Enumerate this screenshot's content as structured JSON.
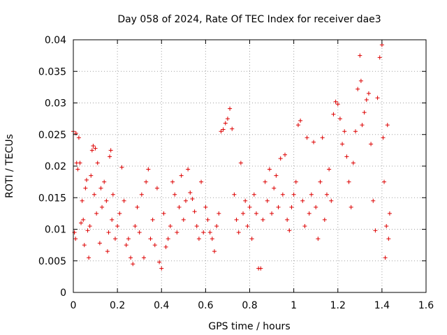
{
  "chart_data": {
    "type": "scatter",
    "title": "Day 058 of 2024, Rate Of TEC Index for receiver dae3",
    "xlabel": "GPS time / hours",
    "ylabel": "ROTI / TECUs",
    "xlim": [
      0,
      1.6
    ],
    "ylim": [
      0,
      0.04
    ],
    "x_ticks": [
      "0",
      "0.2",
      "0.4",
      "0.6",
      "0.8",
      "1",
      "1.2",
      "1.4",
      "1.6"
    ],
    "y_ticks": [
      "0",
      "0.005",
      "0.01",
      "0.015",
      "0.02",
      "0.025",
      "0.03",
      "0.035",
      "0.04"
    ],
    "grid": true,
    "marker": "+",
    "series_color": "#dd0000",
    "series": [
      {
        "name": "ROTI",
        "points": [
          [
            0.0,
            0.0255
          ],
          [
            0.005,
            0.0095
          ],
          [
            0.01,
            0.0085
          ],
          [
            0.012,
            0.0252
          ],
          [
            0.015,
            0.0205
          ],
          [
            0.02,
            0.0195
          ],
          [
            0.025,
            0.0245
          ],
          [
            0.03,
            0.0205
          ],
          [
            0.035,
            0.011
          ],
          [
            0.04,
            0.0145
          ],
          [
            0.045,
            0.0115
          ],
          [
            0.05,
            0.0075
          ],
          [
            0.055,
            0.0165
          ],
          [
            0.06,
            0.0178
          ],
          [
            0.065,
            0.0098
          ],
          [
            0.07,
            0.0055
          ],
          [
            0.075,
            0.0105
          ],
          [
            0.08,
            0.0185
          ],
          [
            0.085,
            0.0225
          ],
          [
            0.09,
            0.0232
          ],
          [
            0.095,
            0.0155
          ],
          [
            0.1,
            0.0228
          ],
          [
            0.105,
            0.0125
          ],
          [
            0.11,
            0.0205
          ],
          [
            0.12,
            0.0078
          ],
          [
            0.125,
            0.0165
          ],
          [
            0.13,
            0.0135
          ],
          [
            0.14,
            0.0175
          ],
          [
            0.15,
            0.0145
          ],
          [
            0.155,
            0.0065
          ],
          [
            0.16,
            0.0095
          ],
          [
            0.165,
            0.0215
          ],
          [
            0.17,
            0.0225
          ],
          [
            0.175,
            0.0115
          ],
          [
            0.18,
            0.0155
          ],
          [
            0.19,
            0.0085
          ],
          [
            0.2,
            0.0105
          ],
          [
            0.21,
            0.0125
          ],
          [
            0.22,
            0.0198
          ],
          [
            0.23,
            0.0145
          ],
          [
            0.24,
            0.0075
          ],
          [
            0.25,
            0.0085
          ],
          [
            0.26,
            0.0055
          ],
          [
            0.27,
            0.0045
          ],
          [
            0.28,
            0.0105
          ],
          [
            0.29,
            0.0135
          ],
          [
            0.3,
            0.0095
          ],
          [
            0.31,
            0.0155
          ],
          [
            0.32,
            0.0055
          ],
          [
            0.33,
            0.0175
          ],
          [
            0.34,
            0.0195
          ],
          [
            0.35,
            0.0085
          ],
          [
            0.36,
            0.0115
          ],
          [
            0.37,
            0.0075
          ],
          [
            0.38,
            0.0165
          ],
          [
            0.39,
            0.0048
          ],
          [
            0.4,
            0.0038
          ],
          [
            0.41,
            0.0125
          ],
          [
            0.42,
            0.0072
          ],
          [
            0.43,
            0.0085
          ],
          [
            0.44,
            0.0105
          ],
          [
            0.45,
            0.0175
          ],
          [
            0.46,
            0.0155
          ],
          [
            0.47,
            0.0095
          ],
          [
            0.48,
            0.0135
          ],
          [
            0.49,
            0.0185
          ],
          [
            0.5,
            0.0115
          ],
          [
            0.51,
            0.0145
          ],
          [
            0.52,
            0.0195
          ],
          [
            0.53,
            0.0158
          ],
          [
            0.54,
            0.0148
          ],
          [
            0.55,
            0.0128
          ],
          [
            0.56,
            0.0105
          ],
          [
            0.57,
            0.0085
          ],
          [
            0.58,
            0.0175
          ],
          [
            0.59,
            0.0095
          ],
          [
            0.6,
            0.0135
          ],
          [
            0.61,
            0.0115
          ],
          [
            0.62,
            0.0095
          ],
          [
            0.63,
            0.0085
          ],
          [
            0.64,
            0.0065
          ],
          [
            0.65,
            0.0105
          ],
          [
            0.66,
            0.0125
          ],
          [
            0.67,
            0.0255
          ],
          [
            0.68,
            0.0258
          ],
          [
            0.69,
            0.0268
          ],
          [
            0.7,
            0.0275
          ],
          [
            0.71,
            0.0291
          ],
          [
            0.72,
            0.0259
          ],
          [
            0.73,
            0.0155
          ],
          [
            0.74,
            0.0115
          ],
          [
            0.75,
            0.0095
          ],
          [
            0.76,
            0.0205
          ],
          [
            0.77,
            0.0125
          ],
          [
            0.78,
            0.0145
          ],
          [
            0.79,
            0.0105
          ],
          [
            0.8,
            0.0135
          ],
          [
            0.81,
            0.0085
          ],
          [
            0.82,
            0.0155
          ],
          [
            0.83,
            0.0125
          ],
          [
            0.84,
            0.0038
          ],
          [
            0.85,
            0.0038
          ],
          [
            0.86,
            0.0115
          ],
          [
            0.87,
            0.0175
          ],
          [
            0.88,
            0.0145
          ],
          [
            0.89,
            0.0195
          ],
          [
            0.9,
            0.0125
          ],
          [
            0.91,
            0.0165
          ],
          [
            0.92,
            0.0185
          ],
          [
            0.93,
            0.0135
          ],
          [
            0.94,
            0.0212
          ],
          [
            0.95,
            0.0155
          ],
          [
            0.96,
            0.0218
          ],
          [
            0.97,
            0.0115
          ],
          [
            0.98,
            0.0098
          ],
          [
            0.99,
            0.0135
          ],
          [
            1.0,
            0.0155
          ],
          [
            1.01,
            0.0175
          ],
          [
            1.02,
            0.0265
          ],
          [
            1.03,
            0.0272
          ],
          [
            1.04,
            0.0145
          ],
          [
            1.05,
            0.0105
          ],
          [
            1.06,
            0.0245
          ],
          [
            1.07,
            0.0125
          ],
          [
            1.08,
            0.0155
          ],
          [
            1.09,
            0.0238
          ],
          [
            1.1,
            0.0135
          ],
          [
            1.11,
            0.0085
          ],
          [
            1.12,
            0.0175
          ],
          [
            1.13,
            0.0245
          ],
          [
            1.14,
            0.0115
          ],
          [
            1.15,
            0.0155
          ],
          [
            1.16,
            0.0195
          ],
          [
            1.17,
            0.0145
          ],
          [
            1.18,
            0.0282
          ],
          [
            1.19,
            0.0302
          ],
          [
            1.2,
            0.0298
          ],
          [
            1.21,
            0.0275
          ],
          [
            1.22,
            0.0235
          ],
          [
            1.23,
            0.0255
          ],
          [
            1.24,
            0.0215
          ],
          [
            1.25,
            0.0175
          ],
          [
            1.26,
            0.0135
          ],
          [
            1.27,
            0.0205
          ],
          [
            1.28,
            0.0255
          ],
          [
            1.29,
            0.0322
          ],
          [
            1.3,
            0.0375
          ],
          [
            1.305,
            0.0335
          ],
          [
            1.31,
            0.0265
          ],
          [
            1.32,
            0.0285
          ],
          [
            1.33,
            0.0305
          ],
          [
            1.34,
            0.0315
          ],
          [
            1.35,
            0.0235
          ],
          [
            1.36,
            0.0145
          ],
          [
            1.37,
            0.0098
          ],
          [
            1.38,
            0.0308
          ],
          [
            1.39,
            0.0372
          ],
          [
            1.4,
            0.0392
          ],
          [
            1.405,
            0.0245
          ],
          [
            1.41,
            0.0175
          ],
          [
            1.415,
            0.0055
          ],
          [
            1.42,
            0.0105
          ],
          [
            1.425,
            0.0265
          ],
          [
            1.43,
            0.0085
          ],
          [
            1.435,
            0.0125
          ]
        ]
      }
    ]
  }
}
